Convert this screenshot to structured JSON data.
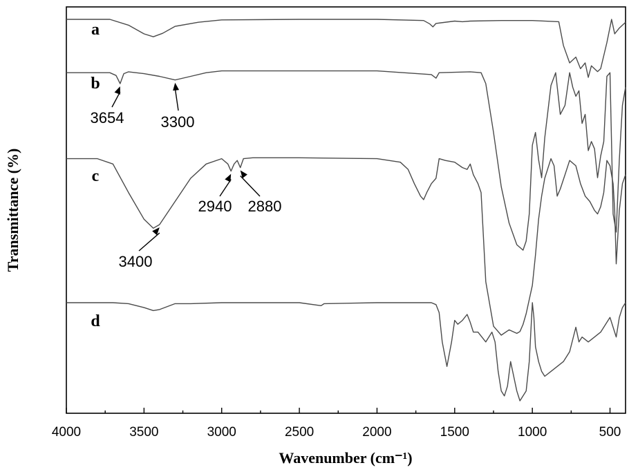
{
  "chart_data": {
    "type": "line",
    "xlabel": "Wavenumber (cm⁻¹)",
    "ylabel": "Transmittance (%)",
    "xlim": [
      4000,
      400
    ],
    "x_reversed": true,
    "x_ticks": [
      4000,
      3500,
      3000,
      2500,
      2000,
      1500,
      1000,
      500
    ],
    "y_ticks_shown": false,
    "series": [
      {
        "name": "a",
        "x": [
          4000,
          3720,
          3600,
          3500,
          3440,
          3380,
          3300,
          3150,
          3000,
          2500,
          2000,
          1700,
          1660,
          1640,
          1620,
          1500,
          1450,
          1400,
          1200,
          1000,
          830,
          800,
          760,
          720,
          690,
          660,
          640,
          620,
          580,
          560,
          520,
          490,
          470,
          440,
          400
        ],
        "values": [
          1.0,
          1.0,
          0.9,
          0.75,
          0.7,
          0.76,
          0.88,
          0.95,
          0.99,
          1.0,
          1.0,
          0.98,
          0.92,
          0.87,
          0.93,
          0.97,
          0.96,
          0.97,
          0.98,
          0.98,
          0.96,
          0.55,
          0.25,
          0.35,
          0.15,
          0.25,
          0.0,
          0.2,
          0.1,
          0.15,
          0.6,
          1.0,
          0.75,
          0.85,
          0.95
        ]
      },
      {
        "name": "b",
        "x": [
          4000,
          3720,
          3680,
          3654,
          3630,
          3600,
          3500,
          3400,
          3300,
          3200,
          3100,
          3000,
          2500,
          2000,
          1650,
          1620,
          1600,
          1400,
          1330,
          1300,
          1250,
          1200,
          1150,
          1100,
          1060,
          1040,
          1020,
          1000,
          980,
          960,
          940,
          920,
          880,
          850,
          820,
          790,
          760,
          740,
          720,
          700,
          680,
          660,
          640,
          620,
          600,
          580,
          560,
          540,
          520,
          500,
          480,
          460,
          440,
          420,
          400
        ],
        "values": [
          0.98,
          0.98,
          0.965,
          0.92,
          0.975,
          0.985,
          0.975,
          0.96,
          0.94,
          0.96,
          0.98,
          0.99,
          0.99,
          0.99,
          0.97,
          0.95,
          0.98,
          0.985,
          0.98,
          0.92,
          0.65,
          0.35,
          0.15,
          0.03,
          0.0,
          0.05,
          0.2,
          0.58,
          0.65,
          0.5,
          0.4,
          0.62,
          0.91,
          0.98,
          0.75,
          0.8,
          0.98,
          0.9,
          0.85,
          0.88,
          0.7,
          0.75,
          0.55,
          0.6,
          0.56,
          0.4,
          0.52,
          0.6,
          0.96,
          0.98,
          0.2,
          0.1,
          0.5,
          0.8,
          0.9
        ]
      },
      {
        "name": "c",
        "x": [
          4000,
          3800,
          3700,
          3600,
          3500,
          3440,
          3400,
          3300,
          3200,
          3100,
          3000,
          2960,
          2940,
          2920,
          2900,
          2880,
          2860,
          2800,
          2500,
          2000,
          1850,
          1800,
          1760,
          1720,
          1700,
          1680,
          1650,
          1620,
          1600,
          1560,
          1500,
          1450,
          1420,
          1400,
          1380,
          1350,
          1330,
          1300,
          1250,
          1200,
          1150,
          1100,
          1080,
          1060,
          1040,
          1020,
          1000,
          980,
          960,
          940,
          920,
          880,
          860,
          840,
          820,
          790,
          760,
          720,
          690,
          660,
          630,
          600,
          580,
          560,
          540,
          520,
          500,
          480,
          470,
          460,
          440,
          420,
          400
        ],
        "values": [
          0.99,
          0.99,
          0.96,
          0.8,
          0.65,
          0.6,
          0.62,
          0.75,
          0.88,
          0.96,
          0.99,
          0.96,
          0.92,
          0.96,
          0.98,
          0.94,
          0.99,
          0.995,
          0.995,
          0.99,
          0.97,
          0.93,
          0.85,
          0.78,
          0.76,
          0.8,
          0.85,
          0.88,
          0.99,
          0.98,
          0.97,
          0.94,
          0.93,
          0.96,
          0.9,
          0.85,
          0.8,
          0.3,
          0.05,
          0.0,
          0.03,
          0.01,
          0.02,
          0.06,
          0.12,
          0.2,
          0.28,
          0.45,
          0.65,
          0.78,
          0.88,
          0.99,
          0.95,
          0.78,
          0.82,
          0.9,
          0.98,
          0.95,
          0.85,
          0.78,
          0.75,
          0.7,
          0.68,
          0.72,
          0.8,
          0.98,
          0.95,
          0.85,
          0.7,
          0.4,
          0.7,
          0.85,
          0.9
        ]
      },
      {
        "name": "d",
        "x": [
          4000,
          3700,
          3600,
          3500,
          3440,
          3400,
          3300,
          3200,
          3000,
          2500,
          2360,
          2340,
          2000,
          1650,
          1620,
          1600,
          1580,
          1550,
          1520,
          1500,
          1480,
          1450,
          1420,
          1400,
          1380,
          1350,
          1300,
          1260,
          1240,
          1220,
          1200,
          1180,
          1160,
          1140,
          1120,
          1100,
          1080,
          1060,
          1040,
          1020,
          1000,
          990,
          980,
          960,
          940,
          920,
          880,
          840,
          800,
          760,
          720,
          700,
          680,
          640,
          600,
          560,
          520,
          500,
          480,
          460,
          440,
          420,
          400
        ],
        "values": [
          1.0,
          1.0,
          0.99,
          0.95,
          0.92,
          0.93,
          0.99,
          0.99,
          1.0,
          1.0,
          0.97,
          0.99,
          1.0,
          1.0,
          0.98,
          0.9,
          0.6,
          0.35,
          0.6,
          0.82,
          0.78,
          0.82,
          0.88,
          0.8,
          0.7,
          0.7,
          0.6,
          0.7,
          0.6,
          0.3,
          0.1,
          0.05,
          0.15,
          0.4,
          0.25,
          0.1,
          0.0,
          0.05,
          0.1,
          0.4,
          1.0,
          0.85,
          0.55,
          0.4,
          0.3,
          0.25,
          0.3,
          0.35,
          0.4,
          0.5,
          0.75,
          0.6,
          0.65,
          0.6,
          0.65,
          0.7,
          0.8,
          0.85,
          0.75,
          0.65,
          0.85,
          0.95,
          1.0
        ]
      }
    ],
    "annotations": [
      {
        "series": "b",
        "text": "3654",
        "x": 3654
      },
      {
        "series": "b",
        "text": "3300",
        "x": 3300
      },
      {
        "series": "c",
        "text": "3400",
        "x": 3400
      },
      {
        "series": "c",
        "text": "2940",
        "x": 2940
      },
      {
        "series": "c",
        "text": "2880",
        "x": 2880
      }
    ],
    "grid": false,
    "legend": "none",
    "line_color": "#4a4a4a"
  }
}
